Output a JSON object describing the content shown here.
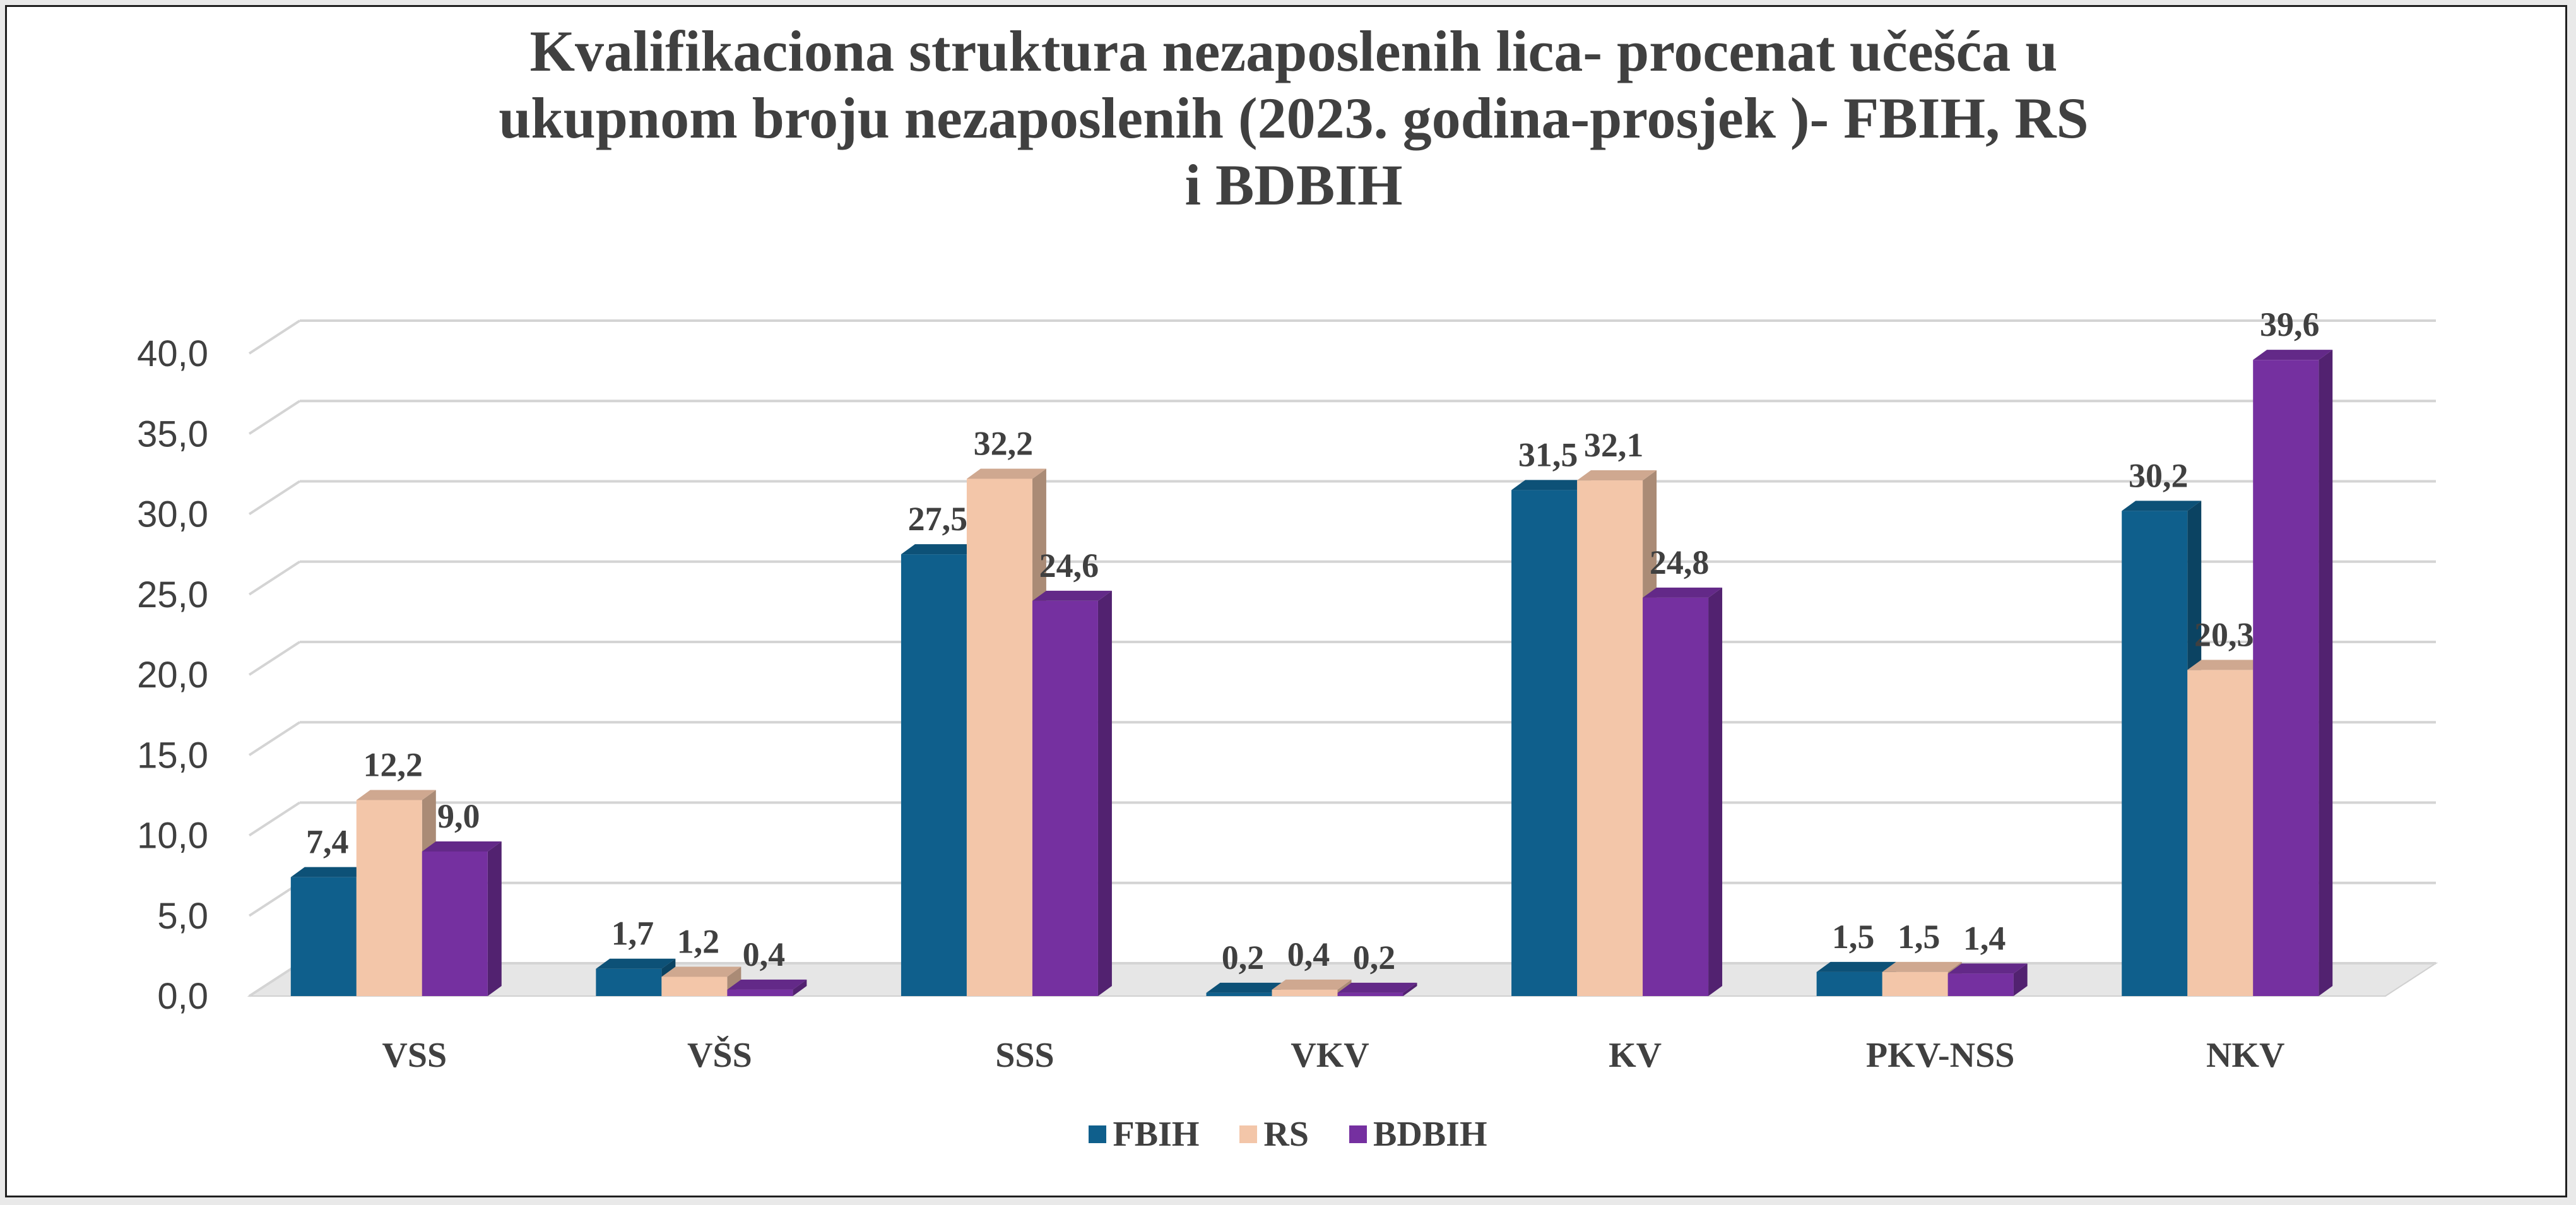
{
  "colors": {
    "FBIH": "#0f5f8c",
    "RS": "#f3c6a9",
    "BDBIH": "#7530a0",
    "grid": "#d4d4d4",
    "text": "#404040"
  },
  "chart_data": {
    "type": "bar",
    "title": "Kvalifikaciona struktura nezaposlenih lica- procenat učešća u ukupnom broju nezaposlenih (2023. godina-prosjek )- FBIH, RS i BDBIH",
    "title_lines": [
      "Kvalifikaciona struktura nezaposlenih lica- procenat učešća u",
      "ukupnom broju nezaposlenih (2023. godina-prosjek )- FBIH, RS",
      "i BDBIH"
    ],
    "categories": [
      "VSS",
      "VŠS",
      "SSS",
      "VKV",
      "KV",
      "PKV-NSS",
      "NKV"
    ],
    "series": [
      {
        "name": "FBIH",
        "values": [
          7.4,
          1.7,
          27.5,
          0.2,
          31.5,
          1.5,
          30.2
        ],
        "labels": [
          "7,4",
          "1,7",
          "27,5",
          "0,2",
          "31,5",
          "1,5",
          "30,2"
        ]
      },
      {
        "name": "RS",
        "values": [
          12.2,
          1.2,
          32.2,
          0.4,
          32.1,
          1.5,
          20.3
        ],
        "labels": [
          "12,2",
          "1,2",
          "32,2",
          "0,4",
          "32,1",
          "1,5",
          "20,3"
        ]
      },
      {
        "name": "BDBIH",
        "values": [
          9.0,
          0.4,
          24.6,
          0.2,
          24.8,
          1.4,
          39.6
        ],
        "labels": [
          "9,0",
          "0,4",
          "24,6",
          "0,2",
          "24,8",
          "1,4",
          "39,6"
        ]
      }
    ],
    "y_ticks": [
      "0,0",
      "5,0",
      "10,0",
      "15,0",
      "20,0",
      "25,0",
      "30,0",
      "35,0",
      "40,0"
    ],
    "ylim": [
      0,
      40
    ],
    "grid": true,
    "legend_position": "bottom"
  }
}
